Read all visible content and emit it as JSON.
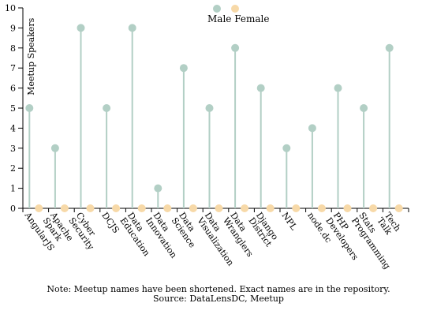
{
  "chart_data": {
    "type": "lollipop",
    "ylabel": "Meetup Speakers",
    "ylim": [
      0,
      10
    ],
    "y_ticks": [
      0,
      1,
      2,
      3,
      4,
      5,
      6,
      7,
      8,
      9,
      10
    ],
    "legend": {
      "placement": "top-center",
      "items": [
        "Male",
        "Female"
      ]
    },
    "categories": [
      [
        "AngularJS"
      ],
      [
        "Apache",
        "Spark"
      ],
      [
        "Cyber",
        "Security"
      ],
      [
        "DCJS"
      ],
      [
        "Data",
        "Education"
      ],
      [
        "Data",
        "Innovation"
      ],
      [
        "Data",
        "Science"
      ],
      [
        "Data",
        "Visualization"
      ],
      [
        "Data",
        "Wranglers"
      ],
      [
        "Django",
        "District"
      ],
      [
        "NPL"
      ],
      [
        "node.dc"
      ],
      [
        "PHP",
        "Developers"
      ],
      [
        "Stats",
        "Programming"
      ],
      [
        "Tech",
        "Talk"
      ]
    ],
    "series": [
      {
        "name": "Male",
        "color": "#b2cfc5",
        "values": [
          5,
          3,
          9,
          5,
          9,
          1,
          7,
          5,
          8,
          6,
          3,
          4,
          6,
          5,
          8
        ]
      },
      {
        "name": "Female",
        "color": "#f7d9a8",
        "values": [
          0,
          0,
          0,
          0,
          0,
          0,
          0,
          0,
          0,
          0,
          0,
          0,
          0,
          0,
          0
        ]
      }
    ]
  },
  "note": "Note: Meetup names have been shortened. Exact names are in the repository.",
  "source": "Source: DataLensDC, Meetup"
}
